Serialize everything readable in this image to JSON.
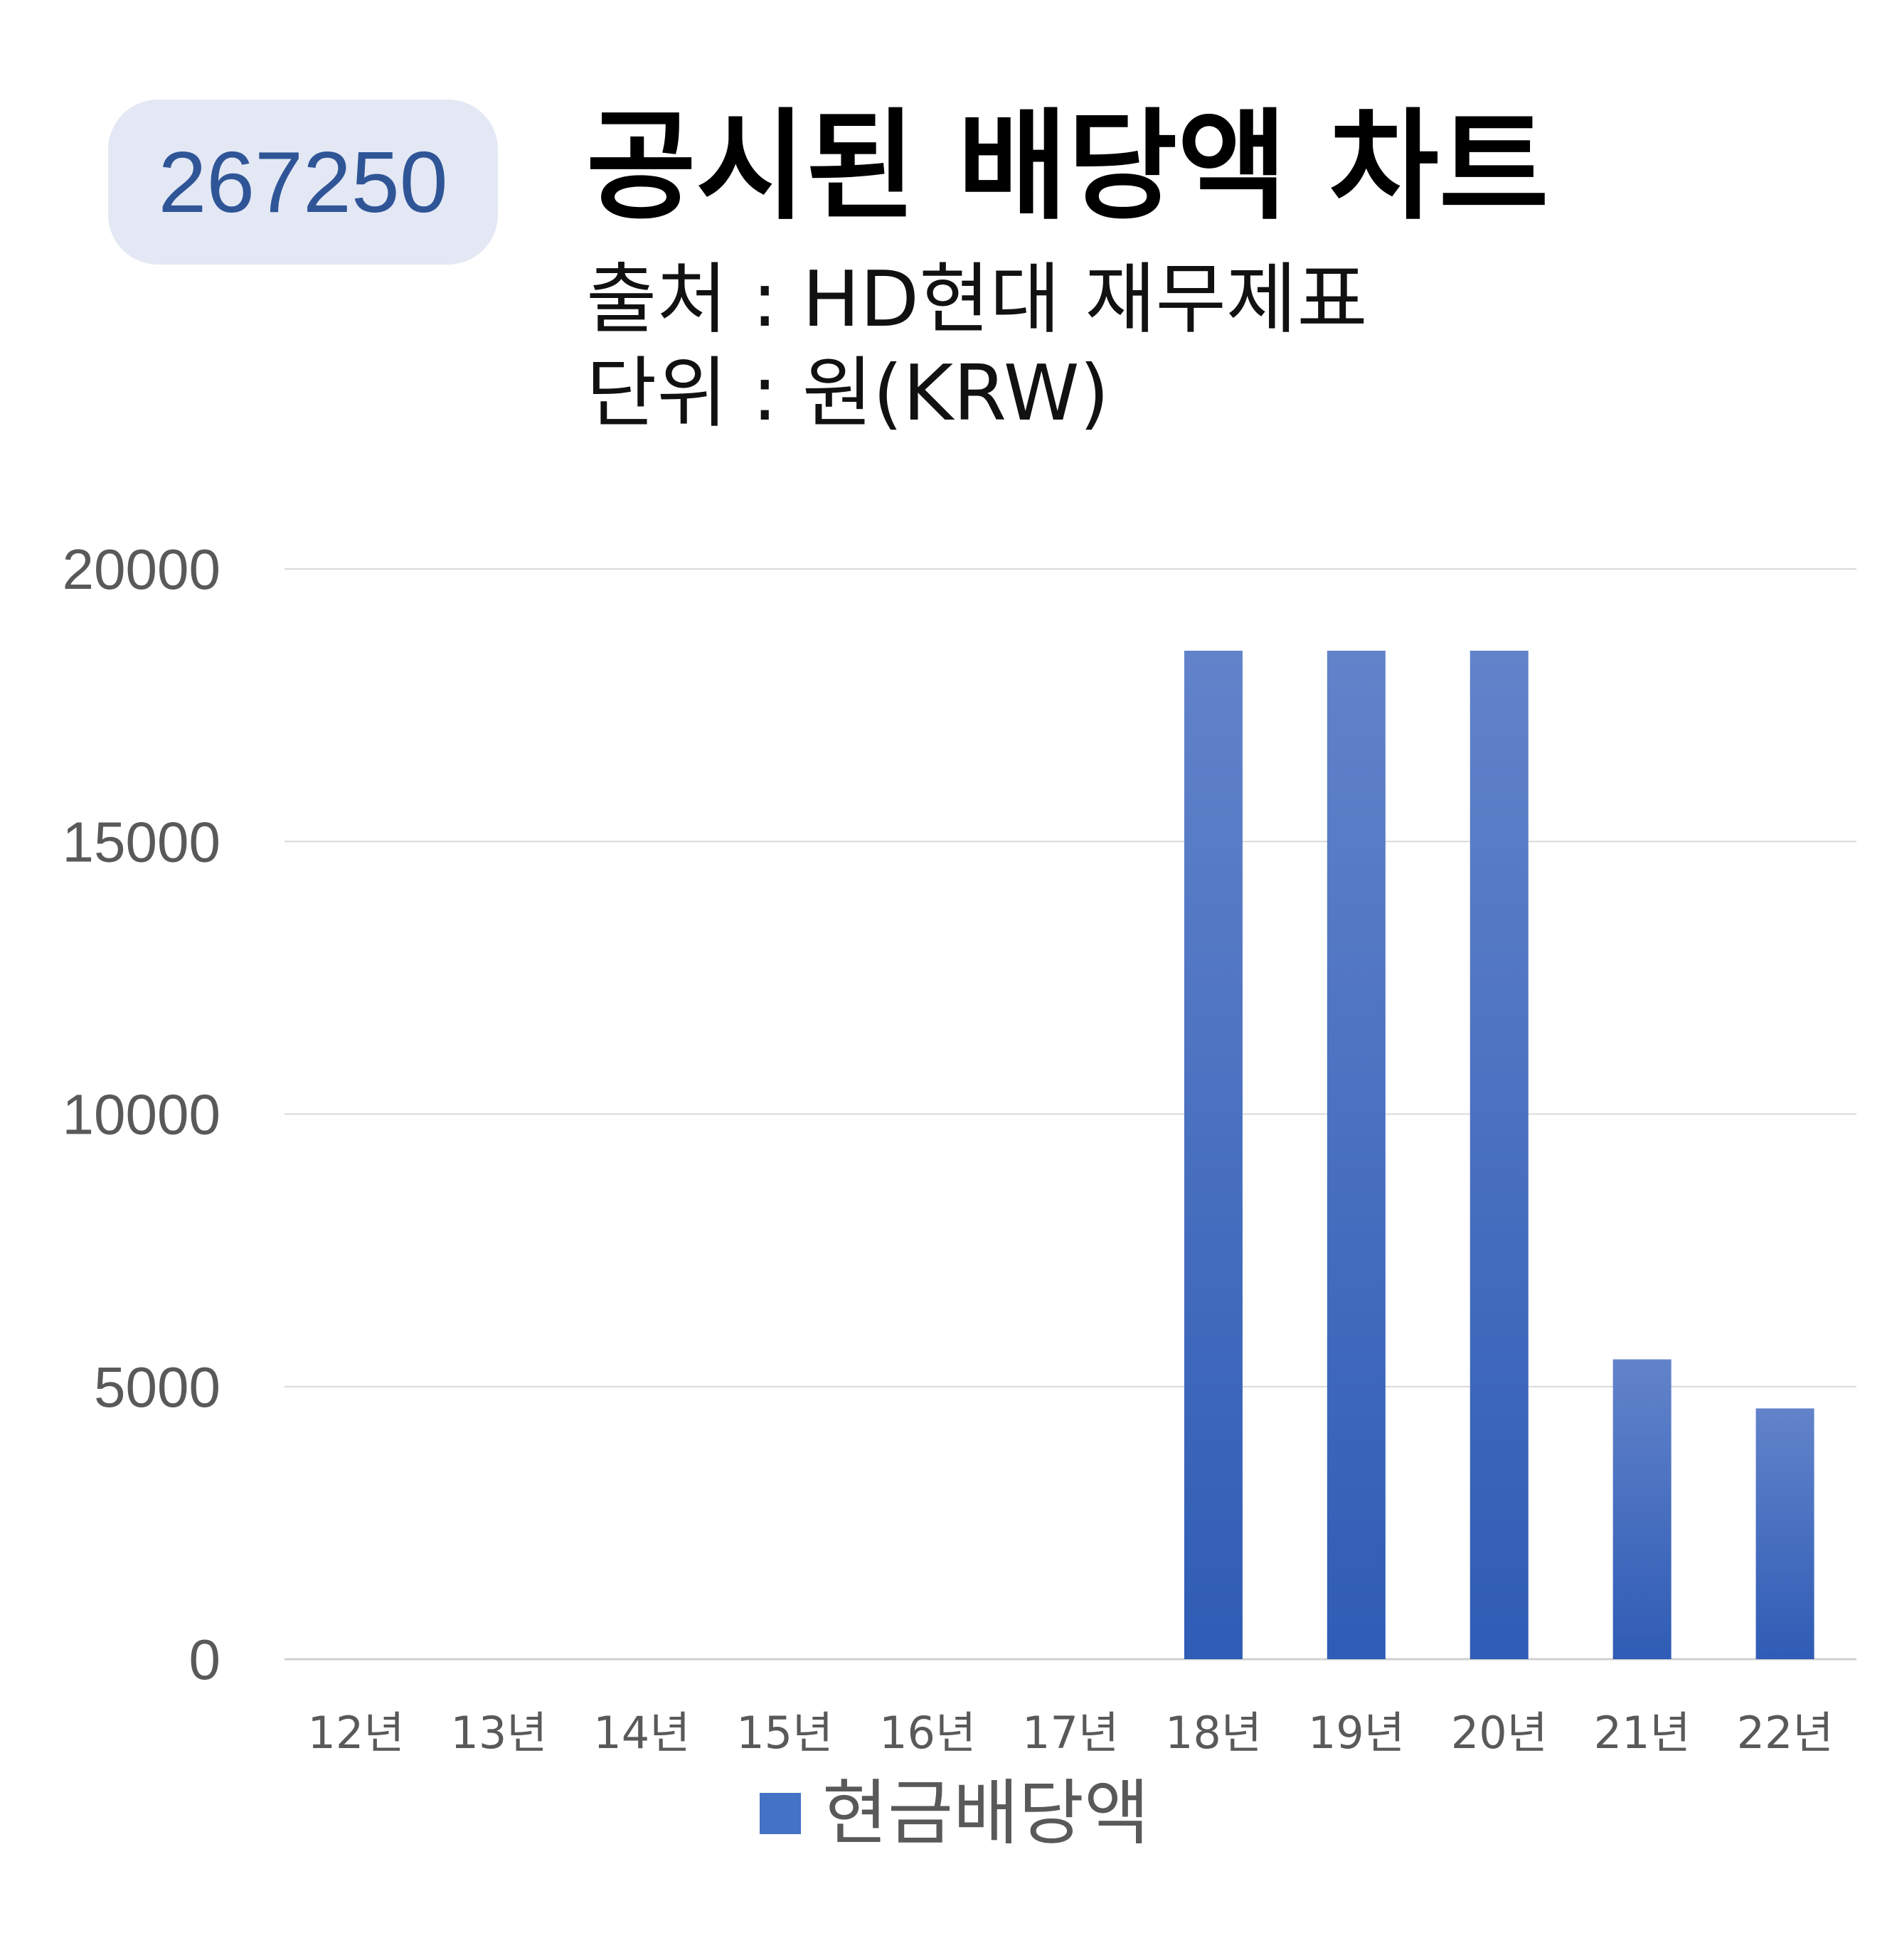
{
  "badge": {
    "code": "267250"
  },
  "header": {
    "title": "공시된 배당액 차트",
    "source": "출처 : HD현대 재무제표",
    "unit": "단위 : 원(KRW)"
  },
  "colors": {
    "bar": "#4472c4",
    "bar_dark": "#2f5cb5",
    "badge_bg": "#e3e8f4",
    "badge_text": "#2f5597"
  },
  "chart_data": {
    "type": "bar",
    "title": "공시된 배당액 차트",
    "categories": [
      "12년",
      "13년",
      "14년",
      "15년",
      "16년",
      "17년",
      "18년",
      "19년",
      "20년",
      "21년",
      "22년"
    ],
    "series": [
      {
        "name": "현금배당액",
        "values": [
          0,
          0,
          0,
          0,
          0,
          0,
          18500,
          18500,
          18500,
          5500,
          4600
        ]
      }
    ],
    "yticks": [
      "0",
      "5000",
      "10000",
      "15000",
      "20000"
    ],
    "ylim": [
      0,
      20000
    ],
    "grid": true,
    "legend": "bottom"
  }
}
